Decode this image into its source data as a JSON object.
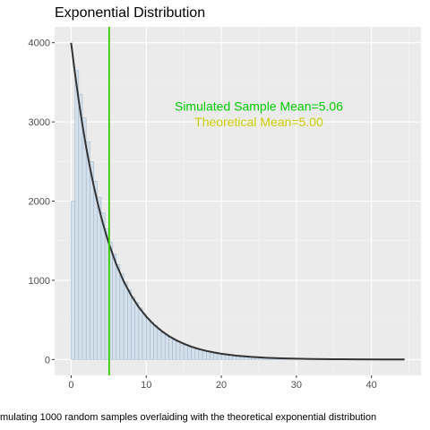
{
  "chart_data": {
    "type": "bar",
    "title": "Exponential Distribution",
    "xlabel": "mulating 1000 random samples overlaiding with the theoretical exponential distribution",
    "ylabel": "",
    "xlim": [
      -2.2,
      46.6
    ],
    "ylim": [
      -200,
      4200
    ],
    "x_ticks": [
      0,
      10,
      20,
      30,
      40
    ],
    "y_ticks": [
      0,
      1000,
      2000,
      3000,
      4000
    ],
    "grid": true,
    "bin_width": 0.5,
    "histogram_bin_starts": [
      0,
      0.5,
      1,
      1.5,
      2,
      2.5,
      3,
      3.5,
      4,
      4.5,
      5,
      5.5,
      6,
      6.5,
      7,
      7.5,
      8,
      8.5,
      9,
      9.5,
      10,
      10.5,
      11,
      11.5,
      12,
      12.5,
      13,
      13.5,
      14,
      14.5,
      15,
      15.5,
      16,
      16.5,
      17,
      17.5,
      18,
      18.5,
      19,
      19.5,
      20,
      20.5,
      21,
      21.5,
      22,
      22.5,
      23,
      23.5,
      24,
      24.5,
      25,
      25.5,
      26,
      26.5,
      27,
      27.5,
      28,
      28.5,
      29,
      29.5,
      30
    ],
    "histogram_counts": [
      2000,
      3650,
      3350,
      3050,
      2750,
      2500,
      2250,
      2050,
      1850,
      1650,
      1480,
      1330,
      1200,
      1080,
      980,
      880,
      790,
      720,
      650,
      580,
      520,
      470,
      430,
      380,
      340,
      310,
      280,
      250,
      220,
      200,
      180,
      160,
      150,
      130,
      120,
      105,
      95,
      85,
      75,
      70,
      60,
      55,
      50,
      45,
      40,
      35,
      32,
      28,
      25,
      22,
      20,
      18,
      16,
      14,
      12,
      10,
      9,
      8,
      7,
      6,
      5
    ],
    "curve": {
      "x": [
        0,
        0.5,
        1,
        1.5,
        2,
        2.5,
        3,
        3.5,
        4,
        4.5,
        5,
        6,
        7,
        8,
        9,
        10,
        11,
        12,
        13,
        14,
        15,
        16,
        17,
        18,
        19,
        20,
        22,
        24,
        26,
        28,
        30,
        32,
        35,
        38,
        41,
        44.4
      ],
      "y": [
        4000,
        3620,
        3275,
        2963,
        2681,
        2426,
        2195,
        1986,
        1797,
        1626,
        1472,
        1205,
        986,
        808,
        661,
        541,
        443,
        363,
        297,
        243,
        199,
        163,
        133,
        109,
        89,
        73,
        49,
        33,
        22,
        15,
        10,
        7,
        4,
        2,
        1,
        0
      ],
      "color": "#333333"
    },
    "mean_line": {
      "x": 5.06,
      "color": "#33cc00"
    },
    "annotations": [
      {
        "text": "Simulated Sample Mean=5.06",
        "x": 25,
        "y": 3200,
        "color": "#00cc00"
      },
      {
        "text": "Theoretical Mean=5.00",
        "x": 25,
        "y": 3000,
        "color": "#cccc00"
      }
    ],
    "colors": {
      "panel": "#ebebeb",
      "grid_major": "#ffffff",
      "bar_fill": "#d3dfea",
      "bar_stroke": "#9db3c8"
    }
  }
}
